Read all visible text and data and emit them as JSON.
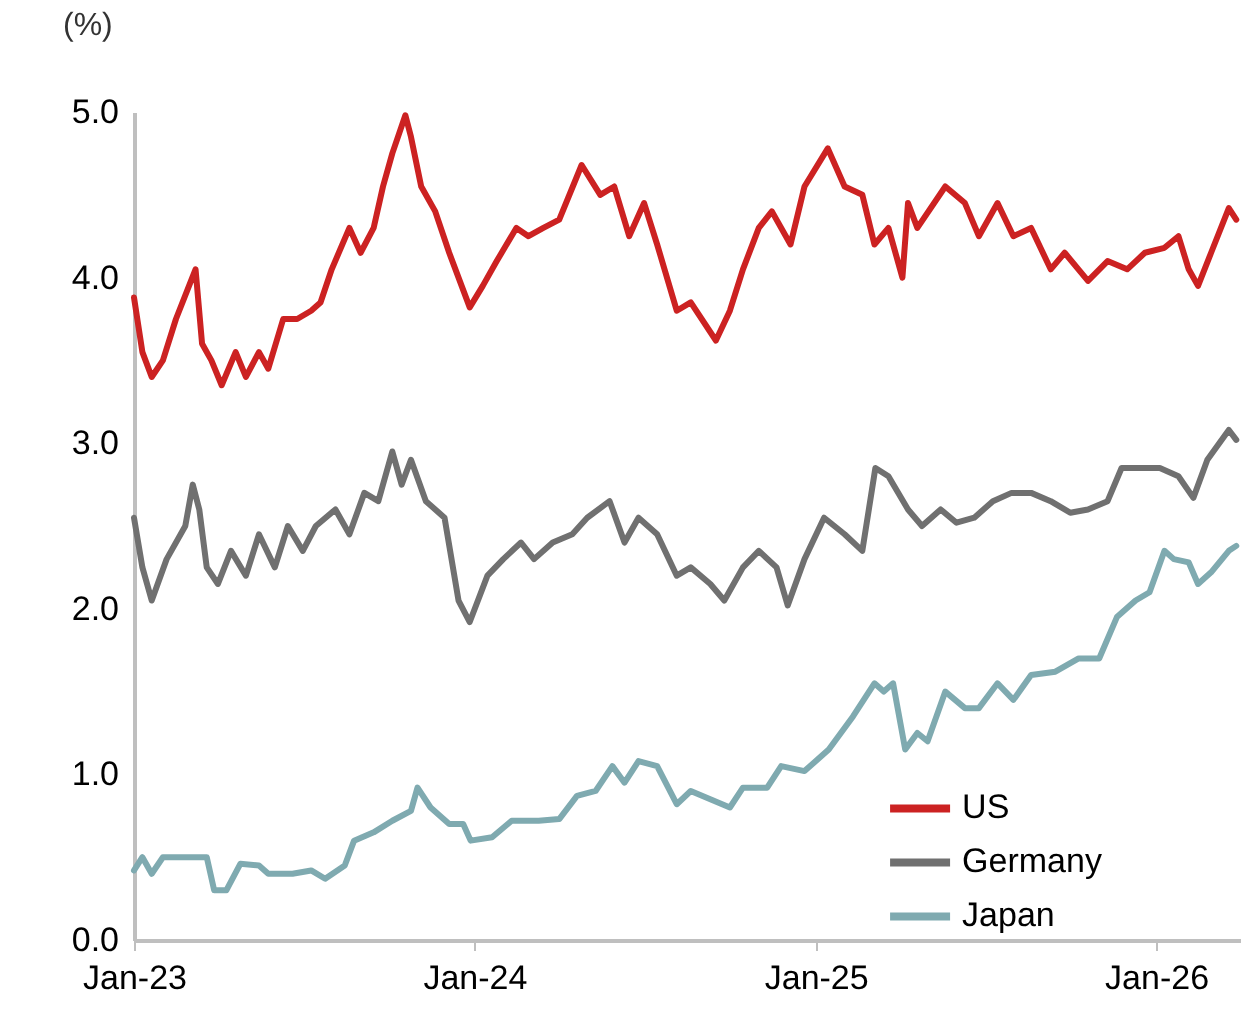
{
  "chart_data": {
    "type": "line",
    "ylabel": "(%)",
    "xlim": [
      "2023-01-01",
      "2026-04-01"
    ],
    "xticks": [
      {
        "value": "2023-01-01",
        "label": "Jan-23"
      },
      {
        "value": "2024-01-01",
        "label": "Jan-24"
      },
      {
        "value": "2025-01-01",
        "label": "Jan-25"
      },
      {
        "value": "2026-01-01",
        "label": "Jan-26"
      }
    ],
    "ylim": [
      0,
      5
    ],
    "yticks": [
      {
        "value": 0,
        "label": "0.0"
      },
      {
        "value": 1,
        "label": "1.0"
      },
      {
        "value": 2,
        "label": "2.0"
      },
      {
        "value": 3,
        "label": "3.0"
      },
      {
        "value": 4,
        "label": "4.0"
      },
      {
        "value": 5,
        "label": "5.0"
      }
    ],
    "grid": false,
    "legend": "bottom right",
    "line_style": "solid",
    "marker": "none",
    "series": [
      {
        "name": "US",
        "color": "#cc2222",
        "x": [
          "2023-01-01",
          "2023-01-10",
          "2023-01-20",
          "2023-02-01",
          "2023-02-15",
          "2023-03-01",
          "2023-03-08",
          "2023-03-15",
          "2023-03-25",
          "2023-04-05",
          "2023-04-20",
          "2023-05-01",
          "2023-05-15",
          "2023-05-25",
          "2023-06-10",
          "2023-06-25",
          "2023-07-10",
          "2023-07-20",
          "2023-08-01",
          "2023-08-20",
          "2023-09-01",
          "2023-09-15",
          "2023-09-25",
          "2023-10-05",
          "2023-10-19",
          "2023-10-25",
          "2023-11-05",
          "2023-11-20",
          "2023-12-05",
          "2023-12-27",
          "2024-01-10",
          "2024-01-25",
          "2024-02-15",
          "2024-02-28",
          "2024-03-15",
          "2024-04-01",
          "2024-04-25",
          "2024-05-15",
          "2024-05-30",
          "2024-06-15",
          "2024-07-01",
          "2024-07-15",
          "2024-08-05",
          "2024-08-20",
          "2024-09-16",
          "2024-10-01",
          "2024-10-15",
          "2024-11-01",
          "2024-11-15",
          "2024-12-05",
          "2024-12-20",
          "2025-01-14",
          "2025-02-01",
          "2025-02-20",
          "2025-03-05",
          "2025-03-20",
          "2025-04-04",
          "2025-04-10",
          "2025-04-20",
          "2025-05-20",
          "2025-06-10",
          "2025-06-25",
          "2025-07-15",
          "2025-08-01",
          "2025-08-20",
          "2025-09-10",
          "2025-09-25",
          "2025-10-20",
          "2025-11-10",
          "2025-12-01",
          "2025-12-20",
          "2026-01-10",
          "2026-01-25",
          "2026-02-05",
          "2026-02-15",
          "2026-03-01",
          "2026-03-20",
          "2026-03-28"
        ],
        "values": [
          3.88,
          3.55,
          3.4,
          3.5,
          3.75,
          3.95,
          4.05,
          3.6,
          3.5,
          3.35,
          3.55,
          3.4,
          3.55,
          3.45,
          3.75,
          3.75,
          3.8,
          3.85,
          4.05,
          4.3,
          4.15,
          4.3,
          4.55,
          4.75,
          4.98,
          4.85,
          4.55,
          4.4,
          4.15,
          3.82,
          3.95,
          4.1,
          4.3,
          4.25,
          4.3,
          4.35,
          4.68,
          4.5,
          4.55,
          4.25,
          4.45,
          4.2,
          3.8,
          3.85,
          3.62,
          3.8,
          4.05,
          4.3,
          4.4,
          4.2,
          4.55,
          4.78,
          4.55,
          4.5,
          4.2,
          4.3,
          4.0,
          4.45,
          4.3,
          4.55,
          4.45,
          4.25,
          4.45,
          4.25,
          4.3,
          4.05,
          4.15,
          3.98,
          4.1,
          4.05,
          4.15,
          4.18,
          4.25,
          4.05,
          3.95,
          4.15,
          4.42,
          4.35
        ]
      },
      {
        "name": "Germany",
        "color": "#707070",
        "x": [
          "2023-01-01",
          "2023-01-10",
          "2023-01-20",
          "2023-02-05",
          "2023-02-25",
          "2023-03-05",
          "2023-03-12",
          "2023-03-20",
          "2023-04-01",
          "2023-04-15",
          "2023-05-01",
          "2023-05-15",
          "2023-06-01",
          "2023-06-15",
          "2023-07-01",
          "2023-07-15",
          "2023-08-05",
          "2023-08-20",
          "2023-09-05",
          "2023-09-20",
          "2023-10-05",
          "2023-10-15",
          "2023-10-25",
          "2023-11-10",
          "2023-11-30",
          "2023-12-15",
          "2023-12-27",
          "2024-01-15",
          "2024-02-01",
          "2024-02-20",
          "2024-03-05",
          "2024-03-25",
          "2024-04-15",
          "2024-05-01",
          "2024-05-25",
          "2024-06-10",
          "2024-06-25",
          "2024-07-15",
          "2024-08-05",
          "2024-08-20",
          "2024-09-10",
          "2024-09-25",
          "2024-10-15",
          "2024-11-01",
          "2024-11-20",
          "2024-12-02",
          "2024-12-20",
          "2025-01-10",
          "2025-02-01",
          "2025-02-20",
          "2025-03-06",
          "2025-03-20",
          "2025-04-10",
          "2025-04-25",
          "2025-05-15",
          "2025-06-01",
          "2025-06-20",
          "2025-07-10",
          "2025-07-30",
          "2025-08-20",
          "2025-09-10",
          "2025-10-01",
          "2025-10-20",
          "2025-11-10",
          "2025-11-25",
          "2025-12-15",
          "2026-01-05",
          "2026-01-25",
          "2026-02-10",
          "2026-02-25",
          "2026-03-20",
          "2026-03-28"
        ],
        "values": [
          2.55,
          2.25,
          2.05,
          2.3,
          2.5,
          2.75,
          2.6,
          2.25,
          2.15,
          2.35,
          2.2,
          2.45,
          2.25,
          2.5,
          2.35,
          2.5,
          2.6,
          2.45,
          2.7,
          2.65,
          2.95,
          2.75,
          2.9,
          2.65,
          2.55,
          2.05,
          1.92,
          2.2,
          2.3,
          2.4,
          2.3,
          2.4,
          2.45,
          2.55,
          2.65,
          2.4,
          2.55,
          2.45,
          2.2,
          2.25,
          2.15,
          2.05,
          2.25,
          2.35,
          2.25,
          2.02,
          2.3,
          2.55,
          2.45,
          2.35,
          2.85,
          2.8,
          2.6,
          2.5,
          2.6,
          2.52,
          2.55,
          2.65,
          2.7,
          2.7,
          2.65,
          2.58,
          2.6,
          2.65,
          2.85,
          2.85,
          2.85,
          2.8,
          2.67,
          2.9,
          3.08,
          3.02
        ]
      },
      {
        "name": "Japan",
        "color": "#7faab0",
        "x": [
          "2023-01-01",
          "2023-01-10",
          "2023-01-20",
          "2023-02-01",
          "2023-03-01",
          "2023-03-20",
          "2023-03-28",
          "2023-04-10",
          "2023-04-25",
          "2023-05-15",
          "2023-05-25",
          "2023-06-20",
          "2023-07-10",
          "2023-07-25",
          "2023-08-15",
          "2023-08-25",
          "2023-09-15",
          "2023-10-05",
          "2023-10-25",
          "2023-11-01",
          "2023-11-15",
          "2023-12-05",
          "2023-12-20",
          "2023-12-28",
          "2024-01-20",
          "2024-02-10",
          "2024-03-10",
          "2024-04-01",
          "2024-04-20",
          "2024-05-10",
          "2024-05-28",
          "2024-06-10",
          "2024-06-25",
          "2024-07-15",
          "2024-08-05",
          "2024-08-20",
          "2024-09-10",
          "2024-10-01",
          "2024-10-15",
          "2024-11-10",
          "2024-11-25",
          "2024-12-20",
          "2025-01-15",
          "2025-02-10",
          "2025-03-05",
          "2025-03-15",
          "2025-03-25",
          "2025-04-07",
          "2025-04-20",
          "2025-05-01",
          "2025-05-20",
          "2025-06-10",
          "2025-06-25",
          "2025-07-15",
          "2025-08-01",
          "2025-08-20",
          "2025-09-15",
          "2025-10-10",
          "2025-11-01",
          "2025-11-20",
          "2025-12-10",
          "2025-12-25",
          "2026-01-10",
          "2026-01-20",
          "2026-02-05",
          "2026-02-15",
          "2026-03-01",
          "2026-03-20",
          "2026-03-28"
        ],
        "values": [
          0.42,
          0.5,
          0.4,
          0.5,
          0.5,
          0.5,
          0.3,
          0.3,
          0.46,
          0.45,
          0.4,
          0.4,
          0.42,
          0.37,
          0.45,
          0.6,
          0.65,
          0.72,
          0.78,
          0.92,
          0.8,
          0.7,
          0.7,
          0.6,
          0.62,
          0.72,
          0.72,
          0.73,
          0.87,
          0.9,
          1.05,
          0.95,
          1.08,
          1.05,
          0.82,
          0.9,
          0.85,
          0.8,
          0.92,
          0.92,
          1.05,
          1.02,
          1.15,
          1.35,
          1.55,
          1.5,
          1.55,
          1.15,
          1.25,
          1.2,
          1.5,
          1.4,
          1.4,
          1.55,
          1.45,
          1.6,
          1.62,
          1.7,
          1.7,
          1.95,
          2.05,
          2.1,
          2.35,
          2.3,
          2.28,
          2.15,
          2.22,
          2.35,
          2.38
        ]
      }
    ]
  }
}
